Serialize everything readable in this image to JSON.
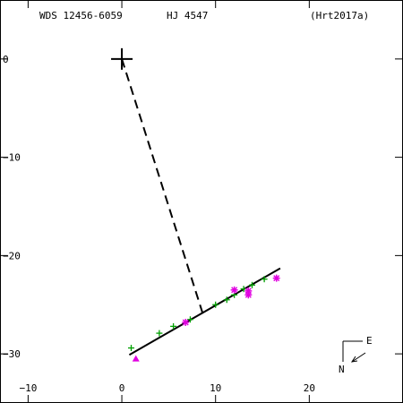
{
  "header": {
    "wds": "WDS 12456-6059",
    "discoverer": "HJ 4547",
    "reference": "(Hrt2017a)"
  },
  "compass": {
    "east_label": "E",
    "north_label": "N"
  },
  "colors": {
    "axes": "#000000",
    "plus_marker": "#00a000",
    "star_marker": "#e000e0",
    "triangle_marker": "#e000e0",
    "orbit_line": "#000000"
  },
  "chart_data": {
    "type": "scatter",
    "xlim": [
      -13,
      30
    ],
    "ylim": [
      -35,
      6
    ],
    "x_ticks": [
      -10,
      0,
      10,
      20
    ],
    "y_ticks": [
      0,
      -10,
      -20,
      -30
    ],
    "primary": {
      "x": 0,
      "y": 0
    },
    "fit_line": {
      "from": [
        0.8,
        -30.1
      ],
      "to": [
        16.9,
        -21.3
      ]
    },
    "projection_line": {
      "from": [
        0,
        0
      ],
      "to": [
        8.6,
        -25.8
      ]
    },
    "series": [
      {
        "marker": "plus",
        "points": [
          [
            1.0,
            -29.4
          ],
          [
            4.0,
            -27.9
          ],
          [
            5.5,
            -27.2
          ],
          [
            7.3,
            -26.5
          ],
          [
            10.0,
            -25.0
          ],
          [
            11.2,
            -24.5
          ],
          [
            12.0,
            -24.0
          ],
          [
            13.0,
            -23.4
          ],
          [
            13.9,
            -23.0
          ],
          [
            15.2,
            -22.4
          ]
        ]
      },
      {
        "marker": "star",
        "points": [
          [
            6.8,
            -26.8
          ],
          [
            12.0,
            -23.5
          ],
          [
            13.5,
            -23.6
          ],
          [
            13.5,
            -24.0
          ],
          [
            16.5,
            -22.3
          ]
        ]
      },
      {
        "marker": "triangle",
        "points": [
          [
            1.5,
            -30.5
          ]
        ]
      }
    ]
  }
}
